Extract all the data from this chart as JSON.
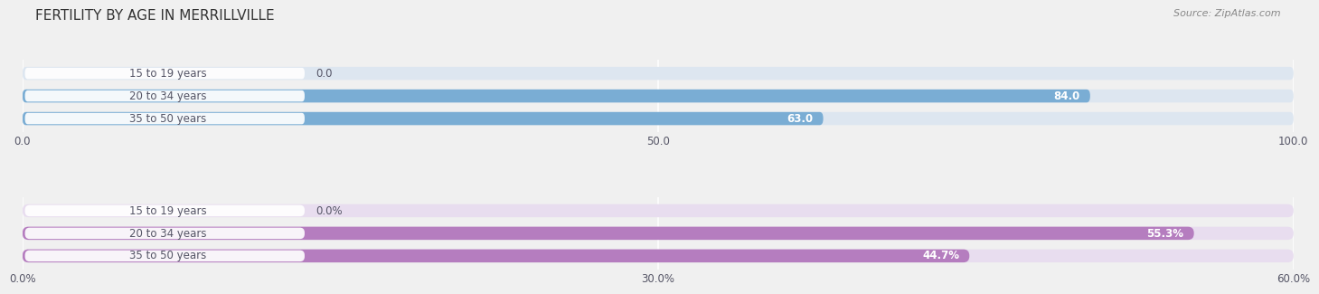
{
  "title": "FERTILITY BY AGE IN MERRILLVILLE",
  "source": "Source: ZipAtlas.com",
  "top_section": {
    "categories": [
      "15 to 19 years",
      "20 to 34 years",
      "35 to 50 years"
    ],
    "values": [
      0.0,
      84.0,
      63.0
    ],
    "max_val": 100.0,
    "xlim": [
      0,
      100
    ],
    "xticks": [
      0.0,
      50.0,
      100.0
    ],
    "xtick_labels": [
      "0.0",
      "50.0",
      "100.0"
    ],
    "bar_color": "#7aadd4",
    "bg_color": "#dde6f0",
    "label_bg_color": "#ffffff",
    "value_labels": [
      "0.0",
      "84.0",
      "63.0"
    ],
    "val_inside": [
      false,
      true,
      true
    ]
  },
  "bottom_section": {
    "categories": [
      "15 to 19 years",
      "20 to 34 years",
      "35 to 50 years"
    ],
    "values": [
      0.0,
      55.3,
      44.7
    ],
    "max_val": 60.0,
    "xlim": [
      0,
      60
    ],
    "xticks": [
      0.0,
      30.0,
      60.0
    ],
    "xtick_labels": [
      "0.0%",
      "30.0%",
      "60.0%"
    ],
    "bar_color": "#b57dbf",
    "bg_color": "#e8ddef",
    "label_bg_color": "#ffffff",
    "value_labels": [
      "0.0%",
      "55.3%",
      "44.7%"
    ],
    "val_inside": [
      false,
      true,
      true
    ]
  },
  "label_color": "#555566",
  "title_color": "#333333",
  "background_color": "#f0f0f0"
}
